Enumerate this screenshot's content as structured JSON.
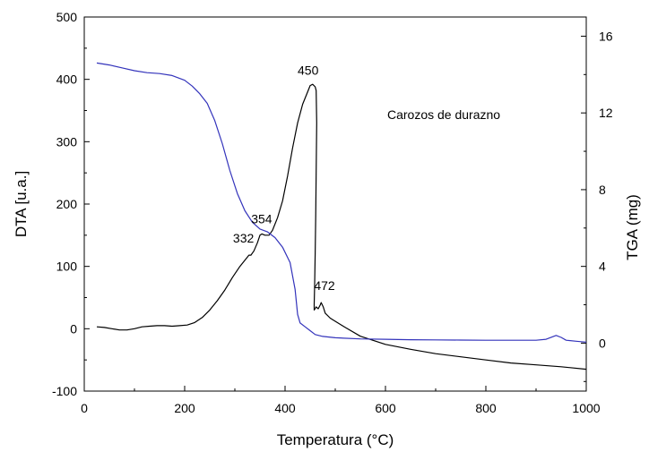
{
  "chart_data": {
    "type": "line",
    "xlabel": "Temperatura (°C)",
    "ylabel": "DTA [u.a.]",
    "ylabel_right": "TGA (mg)",
    "xlim": [
      0,
      1000
    ],
    "ylim": [
      -100,
      500
    ],
    "ylim_right": [
      -2.5,
      17
    ],
    "x_ticks": [
      0,
      200,
      400,
      600,
      800,
      1000
    ],
    "y_ticks": [
      -100,
      0,
      100,
      200,
      300,
      400,
      500
    ],
    "y_ticks_right": [
      0,
      4,
      8,
      12,
      16
    ],
    "grid": false,
    "series": [
      {
        "axis": "left",
        "color": "#000000",
        "points": [
          [
            25,
            3
          ],
          [
            40,
            2
          ],
          [
            55,
            0
          ],
          [
            70,
            -2
          ],
          [
            85,
            -2
          ],
          [
            100,
            0
          ],
          [
            115,
            3
          ],
          [
            130,
            4
          ],
          [
            145,
            5
          ],
          [
            160,
            5
          ],
          [
            175,
            4
          ],
          [
            190,
            5
          ],
          [
            205,
            6
          ],
          [
            220,
            10
          ],
          [
            235,
            18
          ],
          [
            250,
            30
          ],
          [
            265,
            45
          ],
          [
            280,
            62
          ],
          [
            295,
            82
          ],
          [
            310,
            100
          ],
          [
            320,
            110
          ],
          [
            328,
            118
          ],
          [
            332,
            118
          ],
          [
            338,
            125
          ],
          [
            345,
            138
          ],
          [
            350,
            150
          ],
          [
            354,
            152
          ],
          [
            360,
            150
          ],
          [
            368,
            150
          ],
          [
            375,
            158
          ],
          [
            385,
            178
          ],
          [
            395,
            205
          ],
          [
            405,
            245
          ],
          [
            415,
            290
          ],
          [
            425,
            330
          ],
          [
            435,
            360
          ],
          [
            445,
            380
          ],
          [
            450,
            390
          ],
          [
            455,
            392
          ],
          [
            460,
            388
          ],
          [
            462,
            382
          ],
          [
            463,
            330
          ],
          [
            462,
            250
          ],
          [
            461,
            180
          ],
          [
            460,
            120
          ],
          [
            459,
            70
          ],
          [
            458,
            40
          ],
          [
            458,
            30
          ],
          [
            462,
            35
          ],
          [
            466,
            32
          ],
          [
            470,
            38
          ],
          [
            472,
            42
          ],
          [
            476,
            35
          ],
          [
            480,
            25
          ],
          [
            490,
            17
          ],
          [
            500,
            12
          ],
          [
            520,
            2
          ],
          [
            550,
            -12
          ],
          [
            600,
            -25
          ],
          [
            650,
            -33
          ],
          [
            700,
            -40
          ],
          [
            750,
            -45
          ],
          [
            800,
            -50
          ],
          [
            850,
            -55
          ],
          [
            900,
            -58
          ],
          [
            950,
            -61
          ],
          [
            1000,
            -65
          ]
        ]
      },
      {
        "axis": "right",
        "color": "#3333bb",
        "points": [
          [
            25,
            14.6
          ],
          [
            50,
            14.5
          ],
          [
            75,
            14.35
          ],
          [
            100,
            14.2
          ],
          [
            125,
            14.1
          ],
          [
            150,
            14.05
          ],
          [
            175,
            13.95
          ],
          [
            200,
            13.7
          ],
          [
            215,
            13.4
          ],
          [
            230,
            13.0
          ],
          [
            245,
            12.5
          ],
          [
            260,
            11.6
          ],
          [
            275,
            10.4
          ],
          [
            290,
            9.0
          ],
          [
            305,
            7.8
          ],
          [
            320,
            6.9
          ],
          [
            335,
            6.3
          ],
          [
            350,
            5.95
          ],
          [
            365,
            5.8
          ],
          [
            380,
            5.5
          ],
          [
            395,
            5.0
          ],
          [
            410,
            4.2
          ],
          [
            420,
            2.8
          ],
          [
            425,
            1.5
          ],
          [
            430,
            1.05
          ],
          [
            440,
            0.85
          ],
          [
            450,
            0.65
          ],
          [
            460,
            0.45
          ],
          [
            475,
            0.35
          ],
          [
            500,
            0.28
          ],
          [
            550,
            0.22
          ],
          [
            600,
            0.2
          ],
          [
            650,
            0.18
          ],
          [
            700,
            0.17
          ],
          [
            750,
            0.16
          ],
          [
            800,
            0.15
          ],
          [
            850,
            0.15
          ],
          [
            900,
            0.15
          ],
          [
            920,
            0.2
          ],
          [
            940,
            0.4
          ],
          [
            950,
            0.3
          ],
          [
            960,
            0.15
          ],
          [
            980,
            0.1
          ],
          [
            1000,
            0.05
          ]
        ]
      }
    ],
    "annotations": [
      {
        "text": "332",
        "x": 332,
        "y": 118
      },
      {
        "text": "354",
        "x": 354,
        "y": 152
      },
      {
        "text": "450",
        "x": 450,
        "y": 390
      },
      {
        "text": "472",
        "x": 472,
        "y": 42
      }
    ],
    "legend_text": "Carozos de durazno",
    "legend_placement": "top-right"
  }
}
